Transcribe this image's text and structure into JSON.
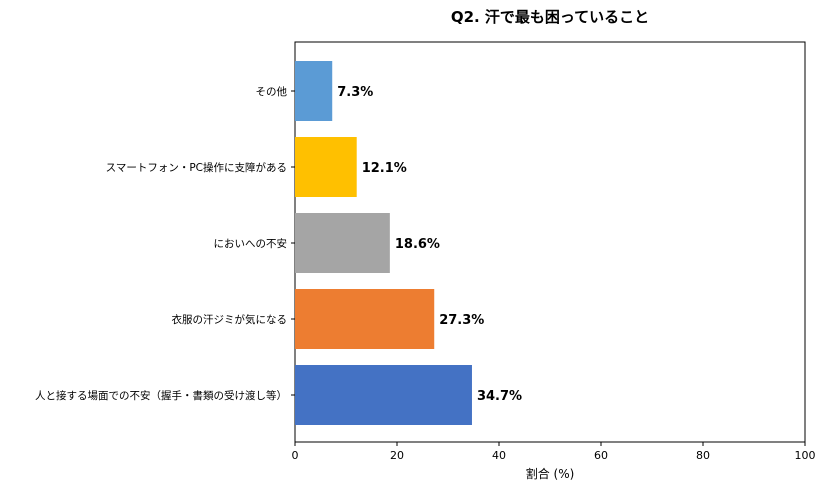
{
  "chart_data": {
    "type": "bar",
    "orientation": "horizontal",
    "title": "Q2. 汗で最も困っていること",
    "xlabel": "割合 (%)",
    "ylabel": "",
    "xlim": [
      0,
      100
    ],
    "xticks": [
      "0",
      "20",
      "40",
      "60",
      "80",
      "100"
    ],
    "grid": false,
    "categories": [
      "人と接する場面での不安（握手・書類の受け渡し等）",
      "衣服の汗ジミが気になる",
      "においへの不安",
      "スマートフォン・PC操作に支障がある",
      "その他"
    ],
    "values": [
      34.7,
      27.3,
      18.6,
      12.1,
      7.3
    ],
    "value_labels": [
      "34.7%",
      "27.3%",
      "18.6%",
      "12.1%",
      "7.3%"
    ],
    "colors": [
      "#4472c4",
      "#ed7d31",
      "#a5a5a5",
      "#ffc000",
      "#5b9bd5"
    ]
  }
}
